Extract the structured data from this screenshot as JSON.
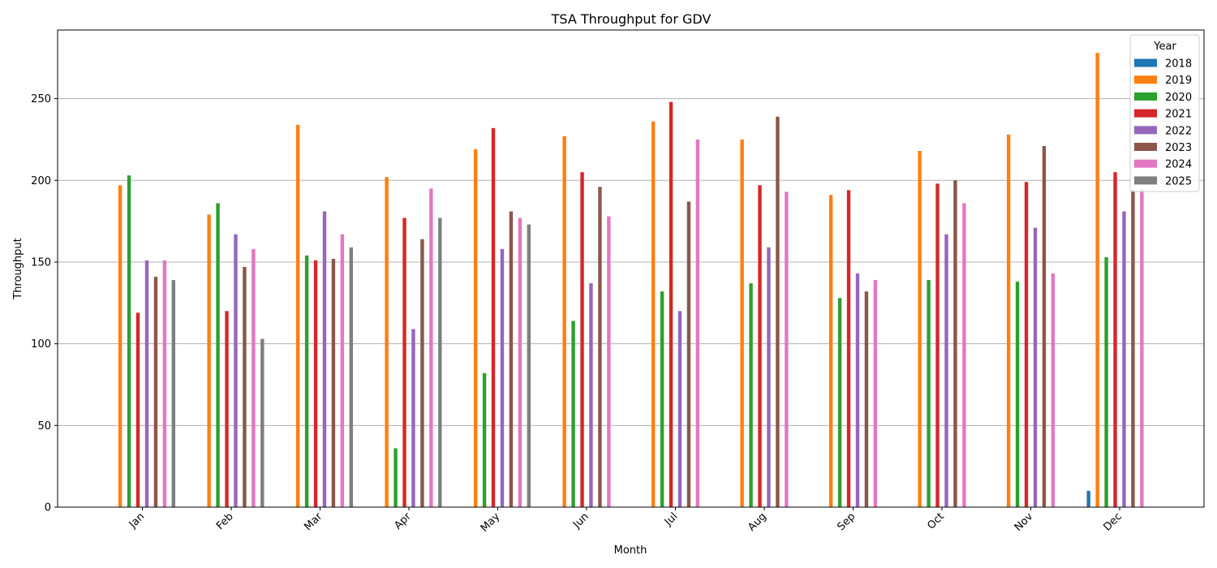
{
  "chart_data": {
    "type": "bar",
    "title": "TSA Throughput for GDV",
    "xlabel": "Month",
    "ylabel": "Throughput",
    "categories": [
      "Jan",
      "Feb",
      "Mar",
      "Apr",
      "May",
      "Jun",
      "Jul",
      "Aug",
      "Sep",
      "Oct",
      "Nov",
      "Dec"
    ],
    "ylim": [
      0,
      292
    ],
    "yticks": [
      0,
      50,
      100,
      150,
      200,
      250
    ],
    "grid": "horizontal",
    "legend": {
      "title": "Year",
      "placement": "top-right"
    },
    "series": [
      {
        "name": "2018",
        "color": "#1f77b4",
        "values": [
          null,
          null,
          null,
          null,
          null,
          null,
          null,
          null,
          null,
          null,
          null,
          10
        ]
      },
      {
        "name": "2019",
        "color": "#ff7f0e",
        "values": [
          197,
          179,
          234,
          202,
          219,
          227,
          236,
          225,
          191,
          218,
          228,
          278
        ]
      },
      {
        "name": "2020",
        "color": "#2ca02c",
        "values": [
          203,
          186,
          154,
          36,
          82,
          114,
          132,
          137,
          128,
          139,
          138,
          153
        ]
      },
      {
        "name": "2021",
        "color": "#d62728",
        "values": [
          119,
          120,
          151,
          177,
          232,
          205,
          248,
          197,
          194,
          198,
          199,
          205
        ]
      },
      {
        "name": "2022",
        "color": "#9467bd",
        "values": [
          151,
          167,
          181,
          109,
          158,
          137,
          120,
          159,
          143,
          167,
          171,
          181
        ]
      },
      {
        "name": "2023",
        "color": "#8c564b",
        "values": [
          141,
          147,
          152,
          164,
          181,
          196,
          187,
          239,
          132,
          200,
          221,
          194
        ]
      },
      {
        "name": "2024",
        "color": "#e377c2",
        "values": [
          151,
          158,
          167,
          195,
          177,
          178,
          225,
          193,
          139,
          186,
          143,
          195
        ]
      },
      {
        "name": "2025",
        "color": "#7f7f7f",
        "values": [
          139,
          103,
          159,
          177,
          173,
          null,
          null,
          null,
          null,
          null,
          null,
          null
        ]
      }
    ]
  }
}
